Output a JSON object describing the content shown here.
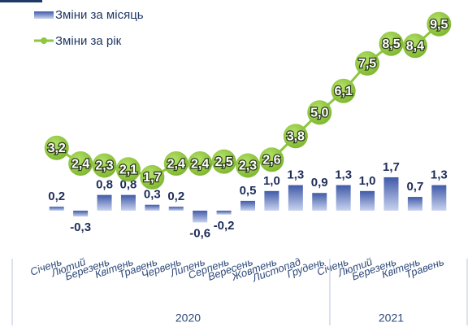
{
  "chart_data": {
    "type": "bar_line",
    "categories": [
      "Січень",
      "Лютий",
      "Березень",
      "Квітень",
      "Травень",
      "Червень",
      "Липень",
      "Серпень",
      "Вересень",
      "Жовтень",
      "Листопад",
      "Грудень",
      "Січень",
      "Лютий",
      "Березень",
      "Квітень",
      "Травень"
    ],
    "year_groups": [
      {
        "label": "2020",
        "span": 12
      },
      {
        "label": "2021",
        "span": 5
      }
    ],
    "series": [
      {
        "name": "Зміни за місяць",
        "type": "bar",
        "color": "#6f86c6",
        "values": [
          0.2,
          -0.3,
          0.8,
          0.8,
          0.3,
          0.2,
          -0.6,
          -0.2,
          0.5,
          1.0,
          1.3,
          0.9,
          1.3,
          1.0,
          1.7,
          0.7,
          1.3
        ],
        "value_labels": [
          "0,2",
          "-0,3",
          "0,8",
          "0,8",
          "0,3",
          "0,2",
          "-0,6",
          "-0,2",
          "0,5",
          "1,0",
          "1,3",
          "0,9",
          "1,3",
          "1,0",
          "1,7",
          "0,7",
          "1,3"
        ]
      },
      {
        "name": "Зміни за рік",
        "type": "line",
        "color": "#8dc63f",
        "values": [
          3.2,
          2.4,
          2.3,
          2.1,
          1.7,
          2.4,
          2.4,
          2.5,
          2.3,
          2.6,
          3.8,
          5.0,
          6.1,
          7.5,
          8.5,
          8.4,
          9.5
        ],
        "value_labels": [
          "3,2",
          "2,4",
          "2,3",
          "2,1",
          "1,7",
          "2,4",
          "2,4",
          "2,5",
          "2,3",
          "2,6",
          "3,8",
          "5,0",
          "6,1",
          "7,5",
          "8,5",
          "8,4",
          "9,5"
        ]
      }
    ],
    "ylim": [
      -1.7,
      9.9
    ]
  }
}
